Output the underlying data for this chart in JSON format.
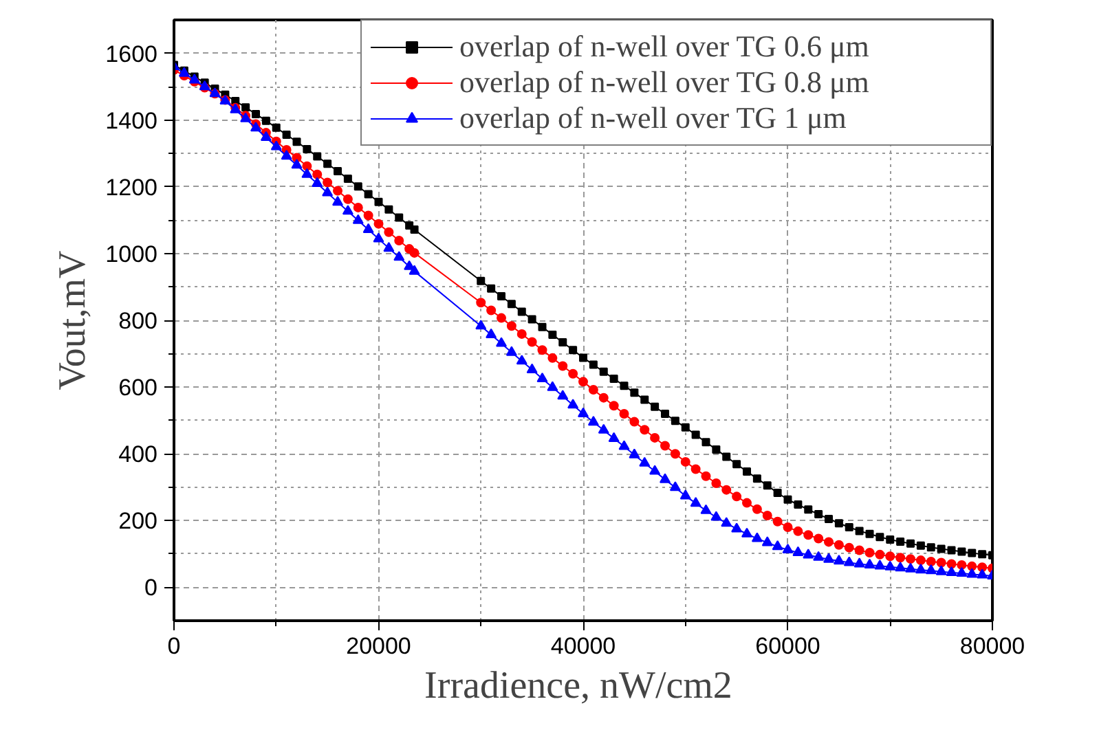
{
  "chart_data": {
    "type": "line",
    "xlabel": "Irradience,  nW/cm2",
    "ylabel": "Vout,mV",
    "x": [
      0,
      1000,
      2000,
      3000,
      4000,
      5000,
      6000,
      7000,
      8000,
      9000,
      10000,
      11000,
      12000,
      13000,
      14000,
      15000,
      16000,
      17000,
      18000,
      19000,
      20000,
      21000,
      22000,
      23000,
      23500,
      30000,
      31000,
      32000,
      33000,
      34000,
      35000,
      36000,
      37000,
      38000,
      39000,
      40000,
      41000,
      42000,
      43000,
      44000,
      45000,
      46000,
      47000,
      48000,
      49000,
      50000,
      51000,
      52000,
      53000,
      54000,
      55000,
      56000,
      57000,
      58000,
      59000,
      60000,
      61000,
      62000,
      63000,
      64000,
      65000,
      66000,
      67000,
      68000,
      69000,
      70000,
      71000,
      72000,
      73000,
      74000,
      75000,
      76000,
      77000,
      78000,
      79000,
      80000
    ],
    "series": [
      {
        "name": "overlap of n-well over TG 0.6 μm",
        "color": "#000000",
        "marker": "square",
        "values": [
          1565,
          1548,
          1530,
          1512,
          1494,
          1476,
          1457,
          1438,
          1418,
          1398,
          1377,
          1356,
          1335,
          1313,
          1291,
          1269,
          1247,
          1224,
          1201,
          1178,
          1155,
          1132,
          1108,
          1084,
          1072,
          918,
          895,
          872,
          849,
          826,
          803,
          780,
          757,
          734,
          711,
          688,
          667,
          646,
          625,
          604,
          583,
          562,
          541,
          520,
          499,
          479,
          457,
          435,
          413,
          391,
          369,
          347,
          326,
          305,
          283,
          263,
          248,
          233,
          219,
          205,
          192,
          180,
          169,
          160,
          151,
          143,
          137,
          131,
          125,
          120,
          115,
          111,
          107,
          103,
          99,
          96
        ]
      },
      {
        "name": "overlap of n-well over TG 0.8 μm",
        "color": "#ff0000",
        "marker": "circle",
        "values": [
          1550,
          1533,
          1515,
          1497,
          1479,
          1460,
          1437,
          1413,
          1388,
          1362,
          1336,
          1311,
          1287,
          1262,
          1237,
          1213,
          1188,
          1163,
          1138,
          1114,
          1089,
          1064,
          1039,
          1014,
          1002,
          853,
          830,
          807,
          783,
          759,
          735,
          711,
          687,
          663,
          640,
          616,
          592,
          568,
          544,
          520,
          496,
          472,
          448,
          424,
          400,
          376,
          354,
          333,
          312,
          292,
          272,
          253,
          234,
          215,
          197,
          180,
          168,
          157,
          146,
          136,
          127,
          119,
          111,
          104,
          98,
          93,
          89,
          85,
          81,
          77,
          74,
          70,
          67,
          63,
          60,
          57
        ]
      },
      {
        "name": "overlap of n-well over TG 1 μm",
        "color": "#0000ff",
        "marker": "triangle",
        "values": [
          1560,
          1540,
          1520,
          1500,
          1479,
          1457,
          1431,
          1404,
          1376,
          1348,
          1320,
          1292,
          1265,
          1237,
          1210,
          1182,
          1154,
          1127,
          1099,
          1072,
          1044,
          1016,
          989,
          961,
          947,
          783,
          757,
          731,
          704,
          678,
          652,
          625,
          599,
          573,
          546,
          520,
          495,
          471,
          446,
          422,
          397,
          372,
          348,
          323,
          299,
          274,
          252,
          230,
          210,
          192,
          175,
          160,
          146,
          134,
          122,
          112,
          104,
          97,
          90,
          84,
          79,
          74,
          70,
          67,
          64,
          61,
          58,
          55,
          52,
          50,
          47,
          44,
          42,
          39,
          37,
          34
        ]
      }
    ],
    "xlim": [
      0,
      80000
    ],
    "xticks": [
      0,
      {
        "value": 10000,
        "label": null
      },
      20000,
      {
        "value": 30000,
        "label": null
      },
      40000,
      {
        "value": 50000,
        "label": null
      },
      60000,
      {
        "value": 70000,
        "label": null
      },
      80000
    ],
    "ylim": [
      -100,
      1700
    ],
    "yticks": [
      0,
      {
        "value": 100,
        "label": null
      },
      200,
      {
        "value": 300,
        "label": null
      },
      400,
      {
        "value": 500,
        "label": null
      },
      600,
      {
        "value": 700,
        "label": null
      },
      800,
      {
        "value": 900,
        "label": null
      },
      1000,
      {
        "value": 1100,
        "label": null
      },
      1200,
      {
        "value": 1300,
        "label": null
      },
      1400,
      {
        "value": 1500,
        "label": null
      },
      1600
    ],
    "grid": true,
    "legend": "top right",
    "line_style": "solid"
  }
}
